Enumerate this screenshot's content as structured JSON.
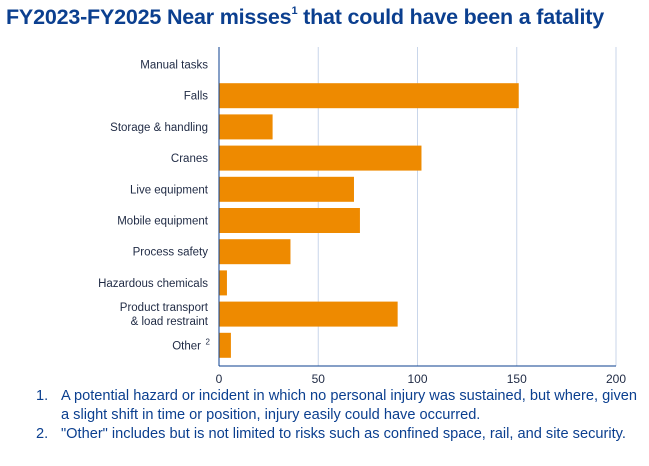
{
  "title": {
    "text": "FY2023-FY2025 Near misses",
    "superscript": "1",
    "suffix": " that could have been a fatality"
  },
  "colors": {
    "title": "#0b3f8f",
    "bar": "#ee8a00",
    "grid": "#c9d6ea",
    "axis": "#0b3f8f",
    "label": "#1f2a44",
    "footnote": "#0b3f8f"
  },
  "chart_data": {
    "type": "bar",
    "orientation": "horizontal",
    "title": "FY2023-FY2025 Near misses1 that could have been a fatality",
    "categories": [
      "Manual tasks",
      "Falls",
      "Storage & handling",
      "Cranes",
      "Live equipment",
      "Mobile equipment",
      "Process safety",
      "Hazardous chemicals",
      "Product transport & load restraint",
      "Other"
    ],
    "category_lines": [
      [
        "Manual tasks"
      ],
      [
        "Falls"
      ],
      [
        "Storage & handling"
      ],
      [
        "Cranes"
      ],
      [
        "Live equipment"
      ],
      [
        "Mobile equipment"
      ],
      [
        "Process safety"
      ],
      [
        "Hazardous chemicals"
      ],
      [
        "Product transport",
        "& load restraint"
      ],
      [
        "Other"
      ]
    ],
    "category_superscripts": [
      "",
      "",
      "",
      "",
      "",
      "",
      "",
      "",
      "",
      "2"
    ],
    "values": [
      0,
      151,
      27,
      102,
      68,
      71,
      36,
      4,
      90,
      6
    ],
    "xlim": [
      0,
      200
    ],
    "xticks": [
      0,
      50,
      100,
      150,
      200
    ],
    "grid": "vertical",
    "legend": "none"
  },
  "footnotes": [
    {
      "num": "1.",
      "text": "A potential hazard or incident in which no personal injury was sustained, but where, given a slight shift in time or position, injury easily could have occurred."
    },
    {
      "num": "2.",
      "text": "\"Other\" includes but is not limited to risks such as confined space, rail, and site security."
    }
  ]
}
